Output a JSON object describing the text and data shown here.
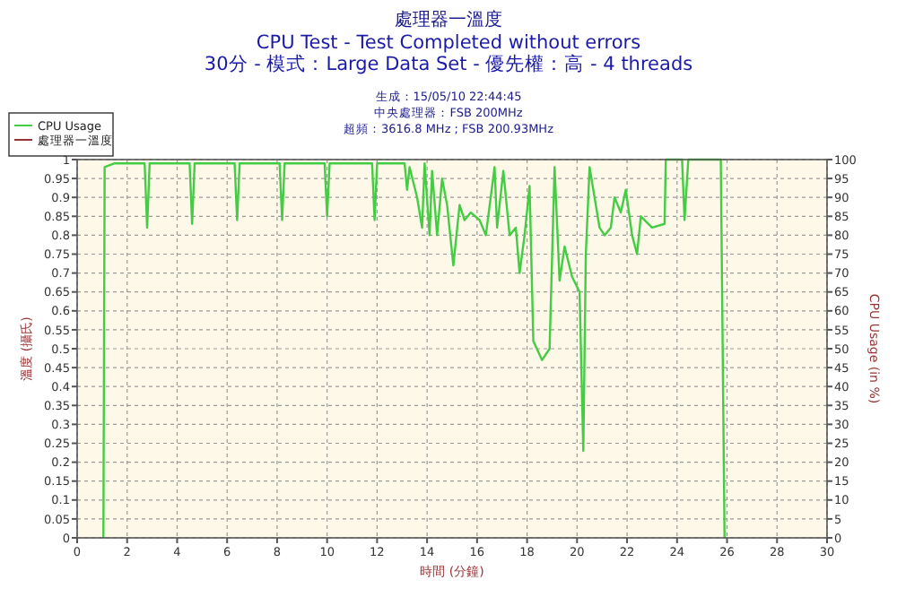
{
  "chart_data": {
    "type": "line",
    "title": "處理器一溫度",
    "subtitle": "CPU Test - Test Completed without errors\n30分 - 模式：Large Data Set - 優先權：高 - 4 threads",
    "annotations": [
      "生成：15/05/10 22:44:45",
      "中央處理器：FSB 200MHz",
      "超頻：3616.8 MHz ; FSB 200.93MHz"
    ],
    "xlabel": "時間 (分鐘)",
    "ylabel": "溫度 (攝氏)",
    "y2label": "CPU Usage (in %)",
    "xlim": [
      0,
      30
    ],
    "xticks": [
      0,
      2,
      4,
      6,
      8,
      10,
      12,
      14,
      16,
      18,
      20,
      22,
      24,
      26,
      28,
      30
    ],
    "ylim": [
      0,
      1
    ],
    "yticks": [
      0,
      0.05,
      0.1,
      0.15,
      0.2,
      0.25,
      0.3,
      0.35,
      0.4,
      0.45,
      0.5,
      0.55,
      0.6,
      0.65,
      0.7,
      0.75,
      0.8,
      0.85,
      0.9,
      0.95,
      1
    ],
    "y2lim": [
      0,
      100
    ],
    "y2ticks": [
      0,
      5,
      10,
      15,
      20,
      25,
      30,
      35,
      40,
      45,
      50,
      55,
      60,
      65,
      70,
      75,
      80,
      85,
      90,
      95,
      100
    ],
    "grid": true,
    "legend": "top left",
    "line_style": "solid",
    "marker": "none",
    "series": [
      {
        "name": "CPU Usage",
        "color": "#44cc44",
        "axis": "y2",
        "x": [
          1.05,
          1.1,
          1.5,
          2.7,
          2.8,
          2.9,
          4.5,
          4.6,
          4.7,
          6.3,
          6.4,
          6.5,
          8.1,
          8.2,
          8.3,
          9.9,
          10.0,
          10.1,
          11.8,
          11.9,
          12.0,
          13.1,
          13.2,
          13.3,
          13.6,
          13.8,
          13.9,
          14.1,
          14.2,
          14.4,
          14.6,
          14.8,
          15.05,
          15.3,
          15.5,
          15.75,
          16.1,
          16.35,
          16.7,
          16.8,
          17.05,
          17.3,
          17.55,
          17.7,
          17.9,
          18.1,
          18.25,
          18.6,
          18.9,
          19.1,
          19.3,
          19.5,
          19.8,
          20.1,
          20.25,
          20.35,
          20.5,
          20.9,
          21.1,
          21.35,
          21.5,
          21.75,
          21.95,
          22.2,
          22.4,
          22.55,
          23.0,
          23.5,
          23.55,
          24.2,
          24.3,
          24.45,
          25.75,
          25.9
        ],
        "values": [
          0,
          98,
          99,
          99,
          82,
          99,
          99,
          83,
          99,
          99,
          84,
          99,
          99,
          84,
          99,
          99,
          85,
          99,
          99,
          84,
          99,
          99,
          92,
          98,
          90,
          82,
          99,
          80,
          97,
          80,
          95,
          88,
          72,
          88,
          84,
          86,
          84,
          80,
          98,
          82,
          97,
          80,
          82,
          70,
          80,
          93,
          52,
          47,
          50,
          98,
          68,
          77,
          69,
          65,
          23,
          75,
          98,
          82,
          80,
          82,
          90,
          86,
          92,
          80,
          75,
          85,
          82,
          83,
          100,
          100,
          84,
          100,
          100,
          0
        ]
      },
      {
        "name": "處理器一溫度",
        "color": "#993333",
        "axis": "y"
      }
    ]
  }
}
